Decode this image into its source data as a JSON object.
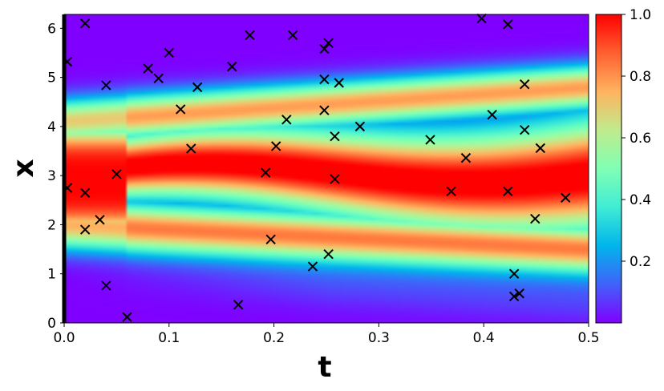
{
  "chart_data": {
    "type": "heatmap",
    "title": "",
    "xlabel": "t",
    "ylabel": "x",
    "xlim": [
      0,
      0.5
    ],
    "ylim": [
      0,
      6.283
    ],
    "xticks": [
      "0.0",
      "0.1",
      "0.2",
      "0.3",
      "0.4",
      "0.5"
    ],
    "xtick_values": [
      0,
      0.1,
      0.2,
      0.3,
      0.4,
      0.5
    ],
    "yticks": [
      "0",
      "1",
      "2",
      "3",
      "4",
      "5",
      "6"
    ],
    "ytick_values": [
      0,
      1,
      2,
      3,
      4,
      5,
      6
    ],
    "colormap": "rainbow",
    "colorbar": {
      "range": [
        0,
        1
      ],
      "ticks": [
        "0.2",
        "0.4",
        "0.6",
        "0.8",
        "1.0"
      ],
      "tick_values": [
        0.2,
        0.4,
        0.6,
        0.8,
        1.0
      ]
    },
    "heatmap_description_points": {
      "note_free": true
    },
    "scatter_marker": "x",
    "scatter_points": [
      [
        0.003,
        5.32
      ],
      [
        0.02,
        6.1
      ],
      [
        0.04,
        4.84
      ],
      [
        0.08,
        5.18
      ],
      [
        0.1,
        5.5
      ],
      [
        0.09,
        4.98
      ],
      [
        0.127,
        4.8
      ],
      [
        0.111,
        4.35
      ],
      [
        0.16,
        5.22
      ],
      [
        0.177,
        5.86
      ],
      [
        0.218,
        5.86
      ],
      [
        0.252,
        5.7
      ],
      [
        0.248,
        5.58
      ],
      [
        0.248,
        4.96
      ],
      [
        0.262,
        4.89
      ],
      [
        0.248,
        4.33
      ],
      [
        0.212,
        4.14
      ],
      [
        0.258,
        3.8
      ],
      [
        0.282,
        4.0
      ],
      [
        0.121,
        3.55
      ],
      [
        0.202,
        3.6
      ],
      [
        0.05,
        3.03
      ],
      [
        0.192,
        3.06
      ],
      [
        0.258,
        2.93
      ],
      [
        0.003,
        2.75
      ],
      [
        0.02,
        2.65
      ],
      [
        0.034,
        2.1
      ],
      [
        0.02,
        1.9
      ],
      [
        0.197,
        1.7
      ],
      [
        0.04,
        0.76
      ],
      [
        0.06,
        0.12
      ],
      [
        0.166,
        0.37
      ],
      [
        0.237,
        1.15
      ],
      [
        0.252,
        1.4
      ],
      [
        0.349,
        3.73
      ],
      [
        0.369,
        2.68
      ],
      [
        0.383,
        3.36
      ],
      [
        0.398,
        6.2
      ],
      [
        0.423,
        6.08
      ],
      [
        0.408,
        4.24
      ],
      [
        0.439,
        4.86
      ],
      [
        0.439,
        3.93
      ],
      [
        0.454,
        3.56
      ],
      [
        0.423,
        2.68
      ],
      [
        0.478,
        2.55
      ],
      [
        0.449,
        2.12
      ],
      [
        0.429,
        1.0
      ],
      [
        0.429,
        0.54
      ],
      [
        0.434,
        0.6
      ]
    ]
  }
}
